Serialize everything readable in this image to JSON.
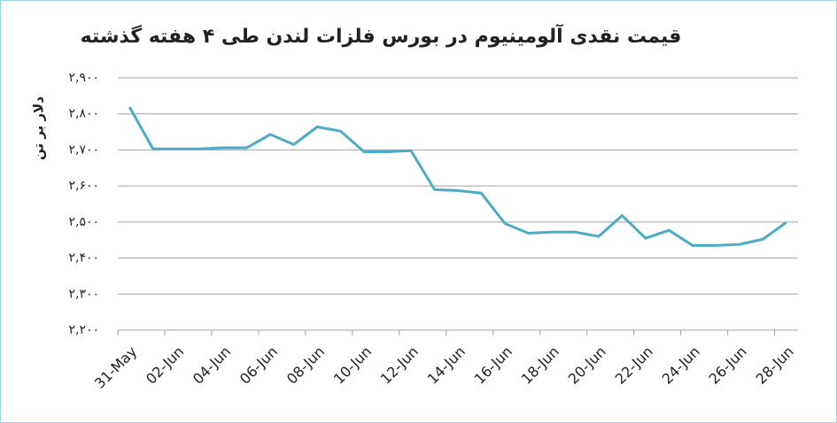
{
  "chart_data": {
    "type": "line",
    "title": "قیمت نقدی آلومینیوم در بورس فلزات لندن طی ۴ هفته گذشته",
    "y_label": "دلار بر تن",
    "categories": [
      "31-May",
      null,
      "02-Jun",
      null,
      "04-Jun",
      null,
      "06-Jun",
      null,
      "08-Jun",
      null,
      "10-Jun",
      null,
      "12-Jun",
      null,
      "14-Jun",
      null,
      "16-Jun",
      null,
      "18-Jun",
      null,
      "20-Jun",
      null,
      "22-Jun",
      null,
      "24-Jun",
      null,
      "26-Jun",
      null,
      "28-Jun"
    ],
    "series": [
      {
        "name": "قیمت نقدی",
        "color": "#4bacc6",
        "values": [
          2819,
          2703,
          2703,
          2703,
          2706,
          2706,
          2743,
          2715,
          2764,
          2752,
          2695,
          2695,
          2698,
          2590,
          2587,
          2580,
          2496,
          2469,
          2472,
          2472,
          2460,
          2518,
          2455,
          2477,
          2435,
          2435,
          2438,
          2452,
          2499
        ]
      }
    ],
    "ylim": [
      2200,
      2900
    ],
    "yticks": [
      {
        "value": 2200,
        "label": "۲,۲۰۰"
      },
      {
        "value": 2300,
        "label": "۲,۳۰۰"
      },
      {
        "value": 2400,
        "label": "۲,۴۰۰"
      },
      {
        "value": 2500,
        "label": "۲,۵۰۰"
      },
      {
        "value": 2600,
        "label": "۲,۶۰۰"
      },
      {
        "value": 2700,
        "label": "۲,۷۰۰"
      },
      {
        "value": 2800,
        "label": "۲,۸۰۰"
      },
      {
        "value": 2900,
        "label": "۲,۹۰۰"
      }
    ],
    "grid": true
  }
}
